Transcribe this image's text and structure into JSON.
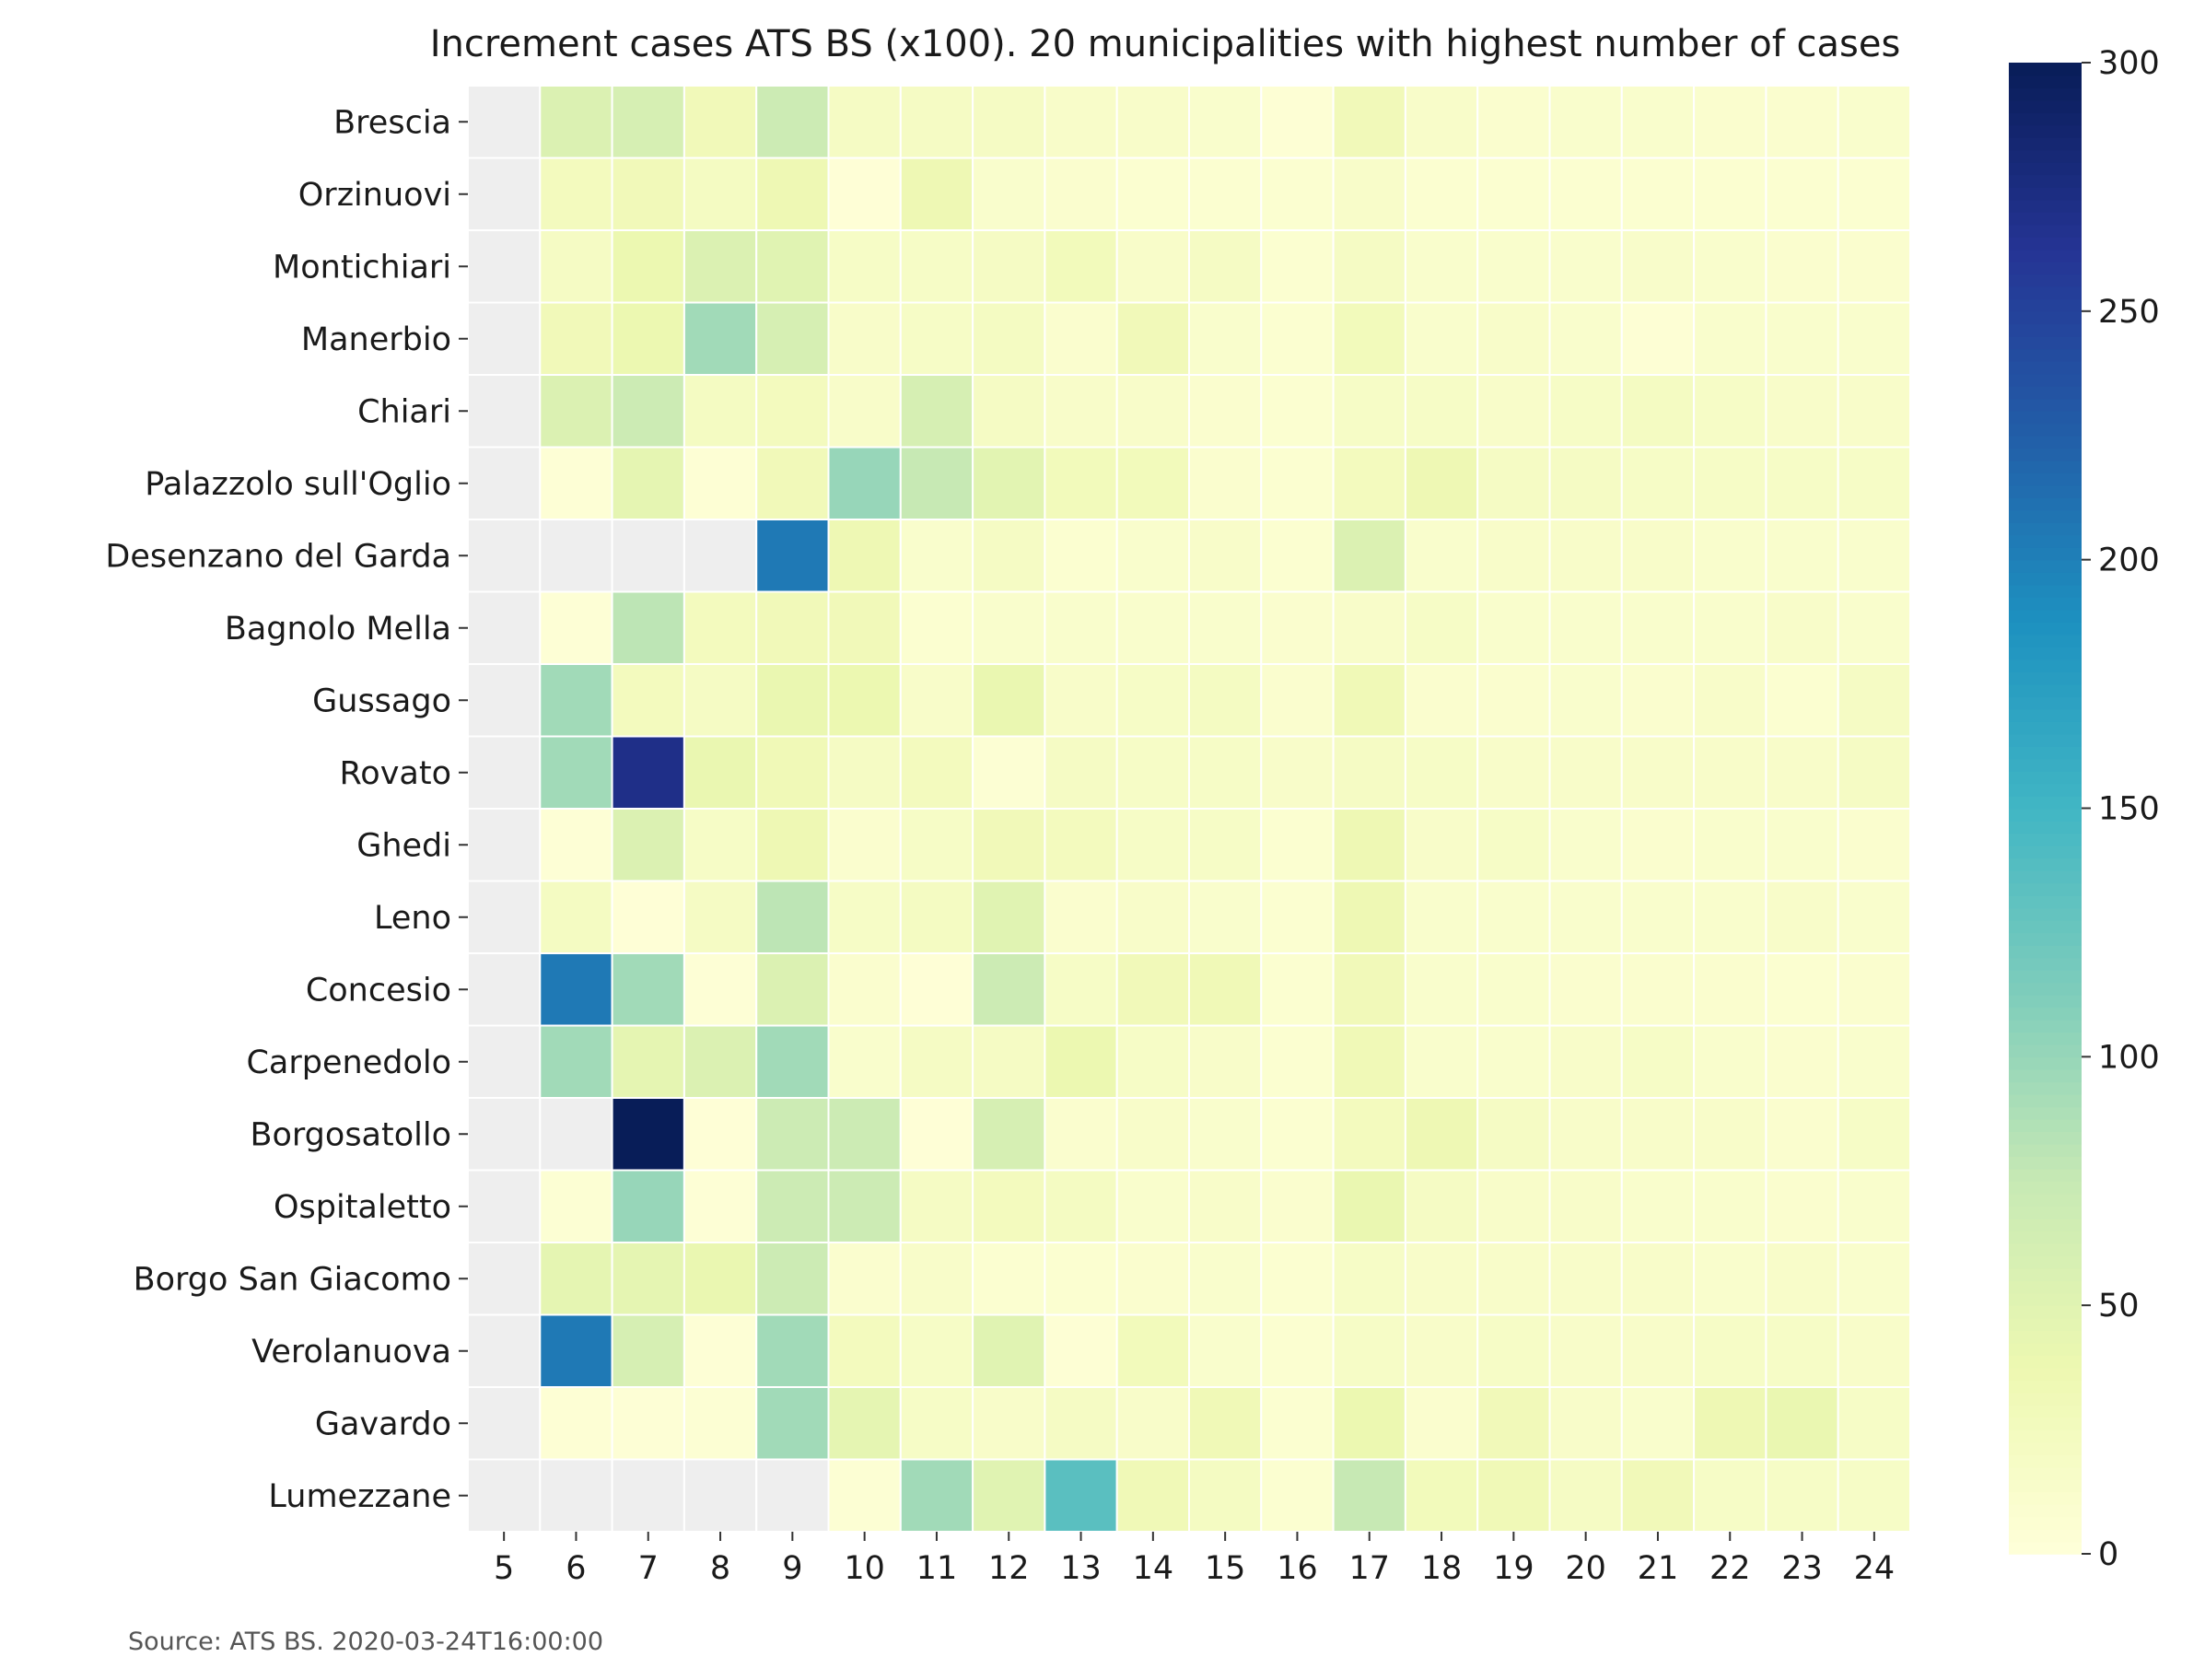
{
  "chart_data": {
    "type": "heatmap",
    "title": "Increment cases ATS BS (x100). 20 municipalities with highest number of cases",
    "source": "Source: ATS BS. 2020-03-24T16:00:00",
    "colormap": "YlGnBu",
    "missing_color": "#eeeeee",
    "vmin": 0,
    "vmax": 300,
    "colorbar_ticks": [
      "0",
      "50",
      "100",
      "150",
      "200",
      "250",
      "300"
    ],
    "columns": [
      "5",
      "6",
      "7",
      "8",
      "9",
      "10",
      "11",
      "12",
      "13",
      "14",
      "15",
      "16",
      "17",
      "18",
      "19",
      "20",
      "21",
      "22",
      "23",
      "24"
    ],
    "rows": [
      "Brescia",
      "Orzinuovi",
      "Montichiari",
      "Manerbio",
      "Chiari",
      "Palazzolo sull'Oglio",
      "Desenzano del Garda",
      "Bagnolo Mella",
      "Gussago",
      "Rovato",
      "Ghedi",
      "Leno",
      "Concesio",
      "Carpenedolo",
      "Borgosatollo",
      "Ospitaletto",
      "Borgo San Giacomo",
      "Verolanuova",
      "Gavardo",
      "Lumezzane"
    ],
    "values": [
      [
        null,
        55,
        60,
        30,
        70,
        20,
        20,
        20,
        15,
        15,
        12,
        5,
        30,
        15,
        10,
        12,
        12,
        10,
        10,
        12
      ],
      [
        null,
        25,
        30,
        22,
        35,
        3,
        35,
        12,
        10,
        8,
        8,
        8,
        15,
        8,
        8,
        8,
        8,
        8,
        8,
        8
      ],
      [
        null,
        20,
        38,
        55,
        50,
        18,
        18,
        20,
        28,
        15,
        20,
        8,
        20,
        12,
        12,
        12,
        14,
        12,
        10,
        10
      ],
      [
        null,
        30,
        38,
        95,
        60,
        15,
        18,
        22,
        10,
        30,
        12,
        8,
        28,
        12,
        15,
        12,
        5,
        12,
        12,
        12
      ],
      [
        null,
        55,
        70,
        22,
        25,
        15,
        60,
        20,
        15,
        15,
        10,
        8,
        18,
        18,
        15,
        18,
        22,
        18,
        15,
        15
      ],
      [
        null,
        4,
        45,
        5,
        30,
        100,
        75,
        48,
        28,
        28,
        10,
        8,
        25,
        35,
        20,
        20,
        18,
        18,
        18,
        18
      ],
      [
        null,
        null,
        null,
        null,
        205,
        35,
        12,
        20,
        8,
        12,
        15,
        8,
        55,
        12,
        15,
        15,
        15,
        12,
        12,
        12
      ],
      [
        null,
        4,
        80,
        25,
        30,
        30,
        8,
        12,
        12,
        12,
        12,
        10,
        15,
        18,
        12,
        12,
        12,
        12,
        15,
        12
      ],
      [
        null,
        95,
        25,
        20,
        40,
        38,
        15,
        40,
        15,
        18,
        22,
        10,
        32,
        10,
        10,
        12,
        10,
        15,
        8,
        20
      ],
      [
        null,
        95,
        270,
        40,
        32,
        20,
        25,
        6,
        20,
        18,
        18,
        15,
        20,
        18,
        15,
        15,
        15,
        15,
        15,
        20
      ],
      [
        null,
        4,
        55,
        18,
        35,
        10,
        18,
        30,
        25,
        18,
        18,
        8,
        35,
        15,
        18,
        12,
        10,
        12,
        12,
        10
      ],
      [
        null,
        22,
        3,
        20,
        80,
        18,
        22,
        50,
        10,
        15,
        12,
        8,
        35,
        12,
        12,
        12,
        12,
        12,
        15,
        12
      ],
      [
        null,
        205,
        95,
        4,
        55,
        10,
        3,
        70,
        18,
        30,
        32,
        8,
        30,
        12,
        12,
        10,
        10,
        10,
        8,
        10
      ],
      [
        null,
        95,
        45,
        55,
        95,
        12,
        20,
        20,
        38,
        18,
        15,
        8,
        32,
        12,
        12,
        15,
        18,
        12,
        10,
        12
      ],
      [
        null,
        null,
        300,
        3,
        70,
        70,
        3,
        60,
        10,
        15,
        12,
        8,
        25,
        35,
        20,
        15,
        15,
        15,
        10,
        18
      ],
      [
        null,
        6,
        100,
        4,
        70,
        70,
        20,
        25,
        22,
        12,
        15,
        10,
        40,
        20,
        15,
        15,
        12,
        12,
        10,
        12
      ],
      [
        null,
        45,
        45,
        40,
        70,
        10,
        15,
        8,
        8,
        10,
        12,
        8,
        18,
        15,
        15,
        15,
        15,
        12,
        15,
        12
      ],
      [
        null,
        205,
        60,
        4,
        95,
        25,
        18,
        50,
        5,
        28,
        12,
        8,
        18,
        15,
        18,
        15,
        15,
        18,
        18,
        15
      ],
      [
        null,
        5,
        4,
        6,
        95,
        45,
        18,
        15,
        20,
        15,
        32,
        8,
        38,
        10,
        30,
        15,
        12,
        35,
        40,
        18
      ],
      [
        null,
        null,
        null,
        null,
        null,
        6,
        95,
        50,
        135,
        32,
        22,
        8,
        75,
        28,
        32,
        20,
        30,
        18,
        18,
        18
      ]
    ]
  }
}
